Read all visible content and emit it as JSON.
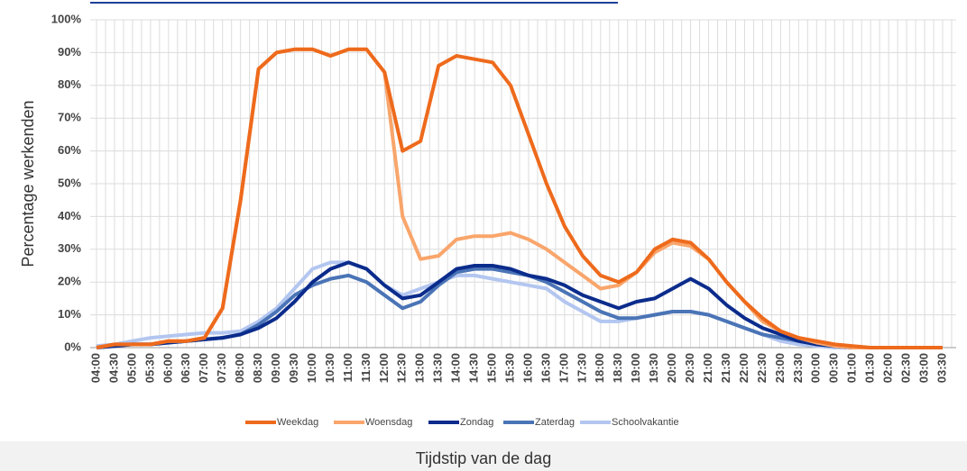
{
  "chart_data": {
    "type": "line",
    "x_label": "Tijdstip van de dag",
    "y_label": "Percentage werkenden",
    "categories": [
      "04:00",
      "04:30",
      "05:00",
      "05:30",
      "06:00",
      "06:30",
      "07:00",
      "07:30",
      "08:00",
      "08:30",
      "09:00",
      "09:30",
      "10:00",
      "10:30",
      "11:00",
      "11:30",
      "12:00",
      "12:30",
      "13:00",
      "13:30",
      "14:00",
      "14:30",
      "15:00",
      "15:30",
      "16:00",
      "16:30",
      "17:00",
      "17:30",
      "18:00",
      "18:30",
      "19:00",
      "19:30",
      "20:00",
      "20:30",
      "21:00",
      "21:30",
      "22:00",
      "22:30",
      "23:00",
      "23:30",
      "00:00",
      "00:30",
      "01:00",
      "01:30",
      "02:00",
      "02:30",
      "03:00",
      "03:30"
    ],
    "ylim": [
      0,
      100
    ],
    "yticks": [
      {
        "value": 0,
        "label": "0%"
      },
      {
        "value": 10,
        "label": "10%"
      },
      {
        "value": 20,
        "label": "20%"
      },
      {
        "value": 30,
        "label": "30%"
      },
      {
        "value": 40,
        "label": "40%"
      },
      {
        "value": 50,
        "label": "50%"
      },
      {
        "value": 60,
        "label": "60%"
      },
      {
        "value": 70,
        "label": "70%"
      },
      {
        "value": 80,
        "label": "80%"
      },
      {
        "value": 90,
        "label": "90%"
      },
      {
        "value": 100,
        "label": "100%"
      }
    ],
    "grid": true,
    "legend": "bottom",
    "series": [
      {
        "name": "Weekdag",
        "color": "#ee6a1c",
        "values": [
          0,
          1,
          1,
          1,
          2,
          2,
          3,
          12,
          45,
          85,
          90,
          91,
          91,
          89,
          91,
          91,
          84,
          60,
          63,
          86,
          89,
          88,
          87,
          80,
          65,
          50,
          37,
          28,
          22,
          20,
          23,
          30,
          33,
          32,
          27,
          20,
          14,
          9,
          5,
          3,
          2,
          1,
          0.5,
          0,
          0,
          0,
          0,
          0
        ]
      },
      {
        "name": "Woensdag",
        "color": "#f9a56b",
        "values": [
          0,
          1,
          1,
          1,
          2,
          2,
          3,
          12,
          45,
          85,
          90,
          91,
          91,
          89,
          91,
          91,
          84,
          40,
          27,
          28,
          33,
          34,
          34,
          35,
          33,
          30,
          26,
          22,
          18,
          19,
          23,
          29,
          32,
          31,
          27,
          20,
          14,
          8,
          5,
          3,
          1.5,
          0.5,
          0,
          0,
          0,
          0,
          0,
          0
        ]
      },
      {
        "name": "Zondag",
        "color": "#0b2c8c",
        "values": [
          0,
          0.5,
          1,
          1,
          1.5,
          2,
          2.5,
          3,
          4,
          6,
          9,
          14,
          20,
          24,
          26,
          24,
          19,
          15,
          16,
          20,
          24,
          25,
          25,
          24,
          22,
          21,
          19,
          16,
          14,
          12,
          14,
          15,
          18,
          21,
          18,
          13,
          9,
          6,
          4,
          2,
          1,
          0.5,
          0,
          0,
          0,
          0,
          0,
          0
        ]
      },
      {
        "name": "Zaterdag",
        "color": "#4a74b6",
        "values": [
          0,
          0.5,
          1,
          1,
          1.5,
          2,
          2.5,
          3,
          4,
          7,
          11,
          16,
          19,
          21,
          22,
          20,
          16,
          12,
          14,
          19,
          23,
          24,
          24,
          23,
          22,
          20,
          17,
          14,
          11,
          9,
          9,
          10,
          11,
          11,
          10,
          8,
          6,
          4,
          3,
          2,
          1,
          0.5,
          0,
          0,
          0,
          0,
          0,
          0
        ]
      },
      {
        "name": "Schoolvakantie",
        "color": "#b3c6f0",
        "values": [
          0.5,
          1,
          2,
          3,
          3.5,
          4,
          4.5,
          4.5,
          5,
          8,
          12,
          18,
          24,
          26,
          26,
          24,
          19,
          16,
          18,
          20,
          22,
          22,
          21,
          20,
          19,
          18,
          14,
          11,
          8,
          8,
          9,
          10,
          11,
          11,
          10,
          8,
          6,
          4,
          2,
          1,
          0.5,
          0,
          0,
          0,
          0,
          0,
          0,
          0
        ]
      }
    ]
  }
}
